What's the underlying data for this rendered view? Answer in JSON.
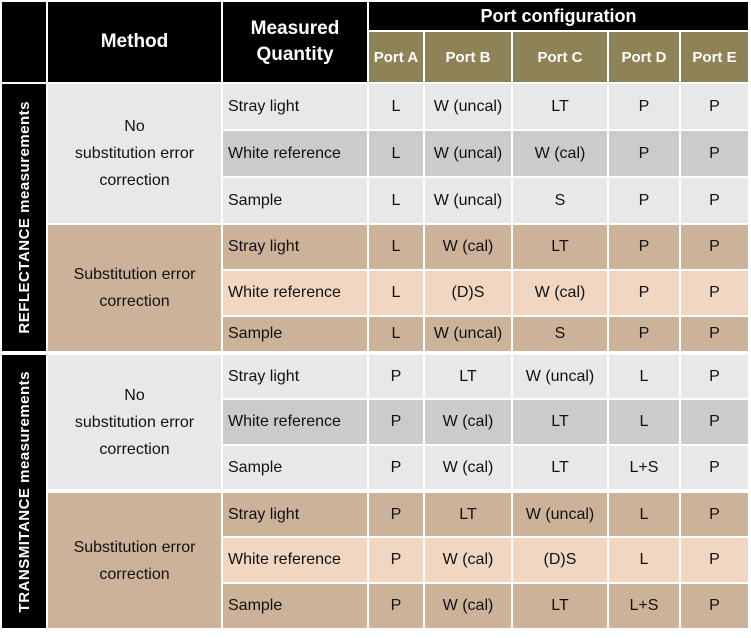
{
  "header": {
    "method": "Method",
    "quantity_line1": "Measured",
    "quantity_line2": "Quantity",
    "port_config": "Port configuration",
    "ports": [
      "Port A",
      "Port B",
      "Port C",
      "Port D",
      "Port E"
    ]
  },
  "sections": [
    {
      "label": "REFLECTANCE measurements",
      "groups": [
        {
          "method_lines": [
            "No",
            "substitution error",
            "correction"
          ],
          "rows": [
            {
              "quantity": "Stray light",
              "ports": [
                "L",
                "W (uncal)",
                "LT",
                "P",
                "P"
              ]
            },
            {
              "quantity": "White reference",
              "ports": [
                "L",
                "W (uncal)",
                "W (cal)",
                "P",
                "P"
              ]
            },
            {
              "quantity": "Sample",
              "ports": [
                "L",
                "W (uncal)",
                "S",
                "P",
                "P"
              ]
            }
          ]
        },
        {
          "method_lines": [
            "Substitution error",
            "correction"
          ],
          "rows": [
            {
              "quantity": "Stray light",
              "ports": [
                "L",
                "W (cal)",
                "LT",
                "P",
                "P"
              ]
            },
            {
              "quantity": "White reference",
              "ports": [
                "L",
                "(D)S",
                "W (cal)",
                "P",
                "P"
              ]
            },
            {
              "quantity": "Sample",
              "ports": [
                "L",
                "W (uncal)",
                "S",
                "P",
                "P"
              ]
            }
          ]
        }
      ]
    },
    {
      "label": "TRANSMITANCE measurements",
      "groups": [
        {
          "method_lines": [
            "No",
            "substitution error",
            "correction"
          ],
          "rows": [
            {
              "quantity": "Stray light",
              "ports": [
                "P",
                "LT",
                "W (uncal)",
                "L",
                "P"
              ]
            },
            {
              "quantity": "White reference",
              "ports": [
                "P",
                "W (cal)",
                "LT",
                "L",
                "P"
              ]
            },
            {
              "quantity": "Sample",
              "ports": [
                "P",
                "W (cal)",
                "LT",
                "L+S",
                "P"
              ]
            }
          ]
        },
        {
          "method_lines": [
            "Substitution error",
            "correction"
          ],
          "rows": [
            {
              "quantity": "Stray light",
              "ports": [
                "P",
                "LT",
                "W (uncal)",
                "L",
                "P"
              ]
            },
            {
              "quantity": "White reference",
              "ports": [
                "P",
                "W (cal)",
                "(D)S",
                "L",
                "P"
              ]
            },
            {
              "quantity": "Sample",
              "ports": [
                "P",
                "W (cal)",
                "LT",
                "L+S",
                "P"
              ]
            }
          ]
        }
      ]
    }
  ]
}
